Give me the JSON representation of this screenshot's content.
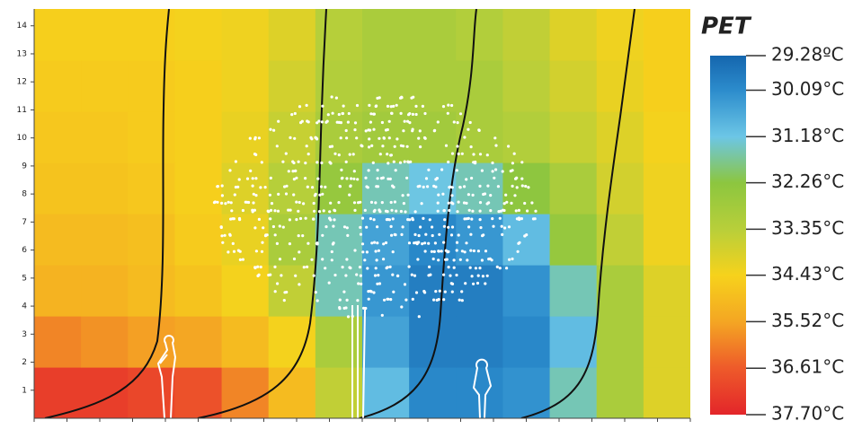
{
  "chart_data": {
    "type": "heatmap",
    "title": "PET",
    "ylim": [
      0,
      14.6
    ],
    "yticks": [
      1,
      2,
      3,
      4,
      5,
      6,
      7,
      8,
      9,
      10,
      11,
      12,
      13,
      14
    ],
    "values": [
      [
        37.2,
        37.2,
        37.0,
        36.8,
        36.0,
        35.0,
        33.5,
        31.0,
        30.0,
        30.0,
        30.2,
        31.5,
        33.0,
        34.0
      ],
      [
        36.0,
        35.8,
        35.6,
        35.5,
        35.0,
        34.4,
        33.0,
        30.5,
        29.8,
        29.8,
        30.0,
        31.0,
        33.0,
        34.0
      ],
      [
        35.2,
        35.2,
        35.0,
        34.8,
        34.4,
        33.5,
        31.5,
        30.3,
        29.8,
        29.8,
        30.2,
        31.5,
        33.0,
        34.0
      ],
      [
        35.0,
        35.0,
        34.9,
        34.6,
        34.2,
        33.0,
        31.5,
        30.5,
        30.0,
        30.3,
        31.0,
        32.5,
        33.5,
        34.3
      ],
      [
        34.8,
        34.8,
        34.7,
        34.5,
        34.0,
        33.3,
        32.5,
        31.5,
        31.2,
        31.5,
        32.3,
        33.0,
        33.8,
        34.3
      ],
      [
        34.7,
        34.7,
        34.6,
        34.5,
        34.2,
        33.6,
        33.0,
        32.8,
        32.8,
        33.0,
        33.2,
        33.6,
        34.0,
        34.4
      ],
      [
        34.6,
        34.6,
        34.6,
        34.5,
        34.3,
        33.8,
        33.2,
        33.0,
        33.0,
        33.0,
        33.4,
        33.8,
        34.2,
        34.5
      ],
      [
        34.5,
        34.5,
        34.5,
        34.4,
        34.3,
        34.0,
        33.3,
        33.0,
        33.0,
        33.2,
        33.5,
        34.0,
        34.3,
        34.5
      ]
    ],
    "clim": [
      29.28,
      37.7
    ],
    "cticks": [
      {
        "value": 29.28,
        "label": "29.28ºC"
      },
      {
        "value": 30.09,
        "label": "30.09°C"
      },
      {
        "value": 31.18,
        "label": "31.18°C"
      },
      {
        "value": 32.26,
        "label": "32.26°C"
      },
      {
        "value": 33.35,
        "label": "33.35°C"
      },
      {
        "value": 34.43,
        "label": "34.43°C"
      },
      {
        "value": 35.52,
        "label": "35.52°C"
      },
      {
        "value": 36.61,
        "label": "36.61°C"
      },
      {
        "value": 37.7,
        "label": "37.70°C"
      }
    ],
    "colorscale": [
      "#1566ae",
      "#2c8ccc",
      "#6cc6e6",
      "#8cc63f",
      "#b8cf3a",
      "#f6d21c",
      "#f4a623",
      "#ee5a2a",
      "#e3262a"
    ]
  }
}
